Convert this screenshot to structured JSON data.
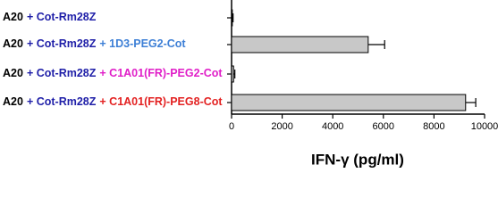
{
  "chart_data": {
    "type": "bar",
    "orientation": "horizontal",
    "categories": [
      [
        {
          "text": "A20",
          "color": "#000000"
        },
        {
          "text": "+ Cot-Rm28Z",
          "color": "#1f1fa8"
        }
      ],
      [
        {
          "text": "A20",
          "color": "#000000"
        },
        {
          "text": "+ Cot-Rm28Z",
          "color": "#1f1fa8"
        },
        {
          "text": "+ 1D3-PEG2-Cot",
          "color": "#3d7fd6"
        }
      ],
      [
        {
          "text": "A20",
          "color": "#000000"
        },
        {
          "text": "+ Cot-Rm28Z",
          "color": "#1f1fa8"
        },
        {
          "text": "+ C1A01(FR)-PEG2-Cot",
          "color": "#e01fc8"
        }
      ],
      [
        {
          "text": "A20",
          "color": "#000000"
        },
        {
          "text": "+ Cot-Rm28Z",
          "color": "#1f1fa8"
        },
        {
          "text": "+ C1A01(FR)-PEG8-Cot",
          "color": "#e32222"
        }
      ]
    ],
    "values": [
      30,
      5400,
      80,
      9250
    ],
    "errors": [
      30,
      650,
      50,
      400
    ],
    "color": "#c8c8c8",
    "xlabel": "IFN-γ (pg/ml)",
    "xlim": [
      0,
      10000
    ],
    "xticks": [
      0,
      2000,
      4000,
      6000,
      8000,
      10000
    ]
  }
}
